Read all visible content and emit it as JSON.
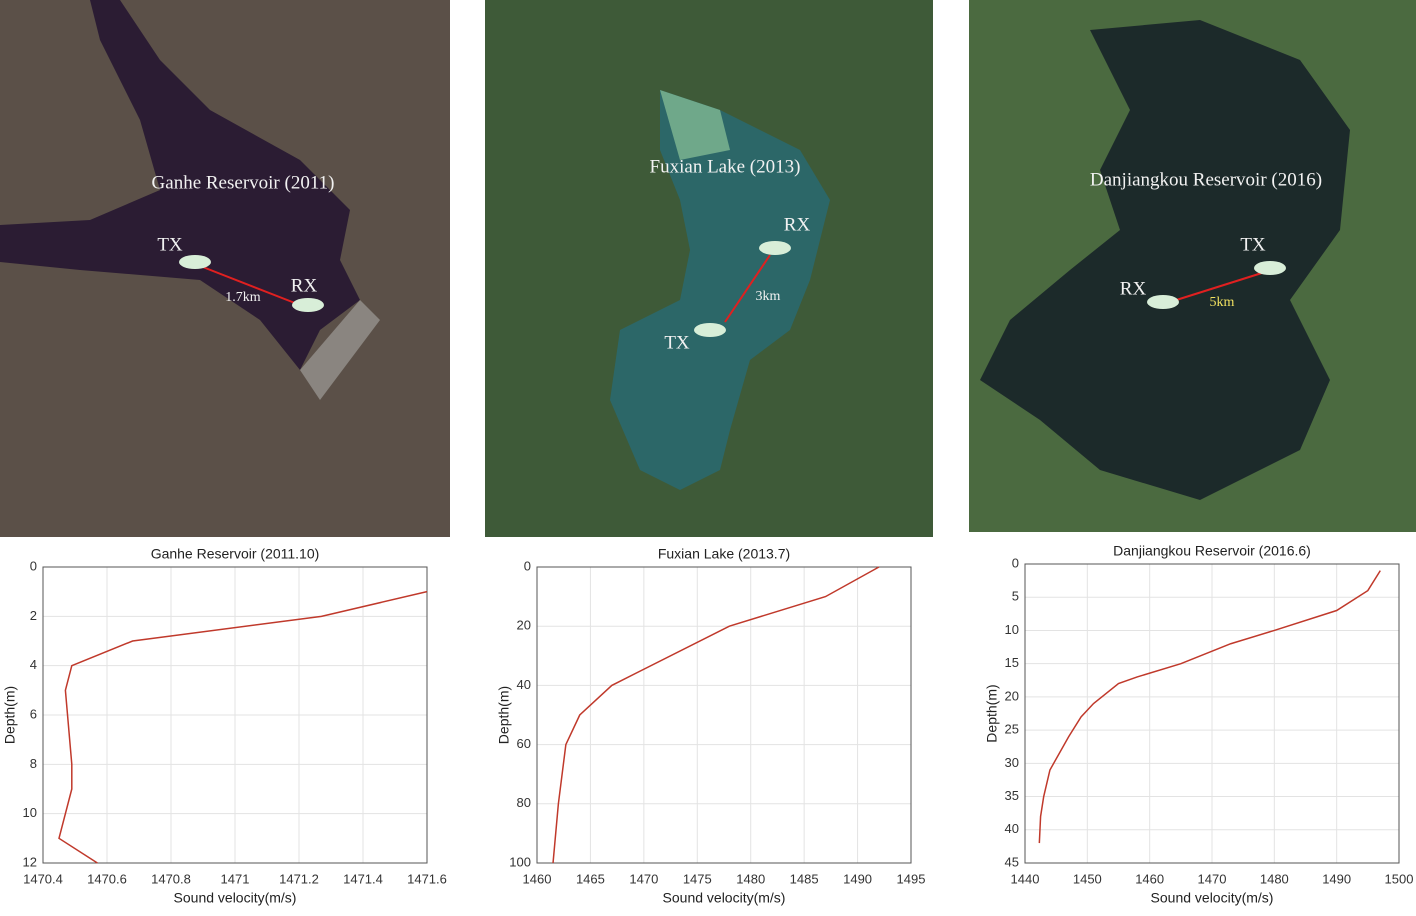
{
  "maps": [
    {
      "title": "Ganhe Reservoir (2011)",
      "tx": "TX",
      "rx": "RX",
      "distance": "1.7km"
    },
    {
      "title": "Fuxian Lake (2013)",
      "tx": "TX",
      "rx": "RX",
      "distance": "3km"
    },
    {
      "title": "Danjiangkou Reservoir (2016)",
      "tx": "TX",
      "rx": "RX",
      "distance": "5km"
    }
  ],
  "chart_data": [
    {
      "type": "line",
      "title": "Ganhe Reservoir (2011.10)",
      "xlabel": "Sound velocity(m/s)",
      "ylabel": "Depth(m)",
      "x": [
        1471.6,
        1471.27,
        1470.68,
        1470.49,
        1470.47,
        1470.49,
        1470.49,
        1470.45,
        1470.57
      ],
      "values": [
        1,
        2,
        3,
        4,
        5,
        8,
        9,
        11,
        12
      ],
      "color": "#c0392b",
      "xlim": [
        1470.4,
        1471.6
      ],
      "xticks": [
        1470.4,
        1470.6,
        1470.8,
        1471,
        1471.2,
        1471.4,
        1471.6
      ],
      "ylim": [
        0,
        12
      ],
      "yticks": [
        0,
        2,
        4,
        6,
        8,
        10,
        12
      ],
      "y_inverted": true,
      "grid": true
    },
    {
      "type": "line",
      "title": "Fuxian Lake (2013.7)",
      "xlabel": "Sound velocity(m/s)",
      "ylabel": "Depth(m)",
      "x": [
        1492,
        1487,
        1478,
        1467,
        1464,
        1462.7,
        1462,
        1461.5
      ],
      "values": [
        0,
        10,
        20,
        40,
        50,
        60,
        80,
        100
      ],
      "color": "#c0392b",
      "xlim": [
        1460,
        1495
      ],
      "xticks": [
        1460,
        1465,
        1470,
        1475,
        1480,
        1485,
        1490,
        1495
      ],
      "ylim": [
        0,
        100
      ],
      "yticks": [
        0,
        20,
        40,
        60,
        80,
        100
      ],
      "y_inverted": true,
      "grid": true
    },
    {
      "type": "line",
      "title": "Danjiangkou Reservoir (2016.6)",
      "xlabel": "Sound velocity(m/s)",
      "ylabel": "Depth(m)",
      "x": [
        1497,
        1495,
        1490,
        1480,
        1473,
        1465,
        1458,
        1455,
        1451,
        1449,
        1447,
        1444,
        1443,
        1442.5,
        1442.3
      ],
      "values": [
        1,
        4,
        7,
        10,
        12,
        15,
        17,
        18,
        21,
        23,
        26,
        31,
        35,
        38,
        42
      ],
      "color": "#c0392b",
      "xlim": [
        1440,
        1500
      ],
      "xticks": [
        1440,
        1450,
        1460,
        1470,
        1480,
        1490,
        1500
      ],
      "ylim": [
        0,
        45
      ],
      "yticks": [
        0,
        5,
        10,
        15,
        20,
        25,
        30,
        35,
        40,
        45
      ],
      "y_inverted": true,
      "grid": true
    }
  ]
}
